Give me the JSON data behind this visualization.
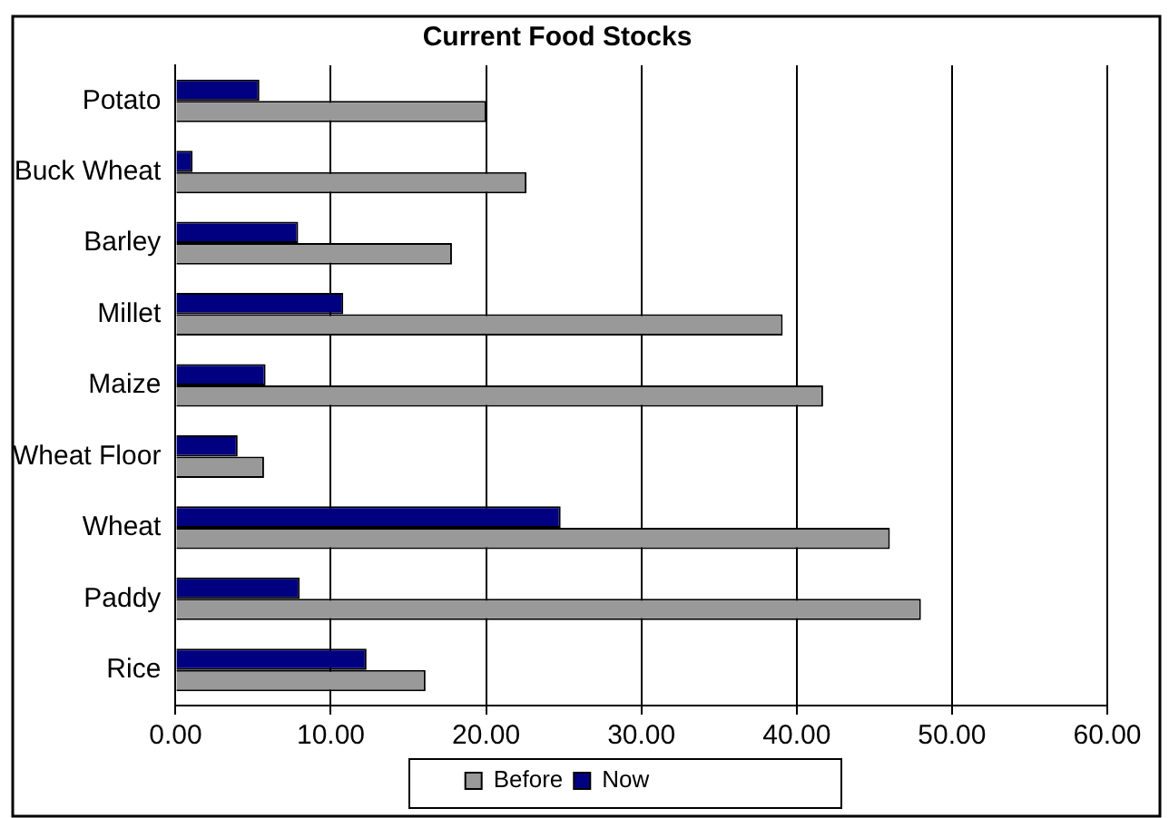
{
  "chart_data": {
    "type": "bar",
    "orientation": "horizontal",
    "title": "Current Food Stocks",
    "categories": [
      "Potato",
      "Buck Wheat",
      "Barley",
      "Millet",
      "Maize",
      "Wheat Floor",
      "Wheat",
      "Paddy",
      "Rice"
    ],
    "series": [
      {
        "name": "Now",
        "color": "#000080",
        "values": [
          5.4,
          1.1,
          7.9,
          10.8,
          5.8,
          4.0,
          24.8,
          8.0,
          12.3
        ]
      },
      {
        "name": "Before",
        "color": "#999999",
        "values": [
          20.0,
          22.6,
          17.8,
          39.1,
          41.7,
          5.7,
          46.0,
          48.0,
          16.1
        ]
      }
    ],
    "xlim": [
      0,
      60
    ],
    "xticks": [
      {
        "value": 0,
        "label": "0.00"
      },
      {
        "value": 10,
        "label": "10.00"
      },
      {
        "value": 20,
        "label": "20.00"
      },
      {
        "value": 30,
        "label": "30.00"
      },
      {
        "value": 40,
        "label": "40.00"
      },
      {
        "value": 50,
        "label": "50.00"
      },
      {
        "value": 60,
        "label": "60.00"
      }
    ],
    "grid": "x",
    "legend": "bottom"
  }
}
